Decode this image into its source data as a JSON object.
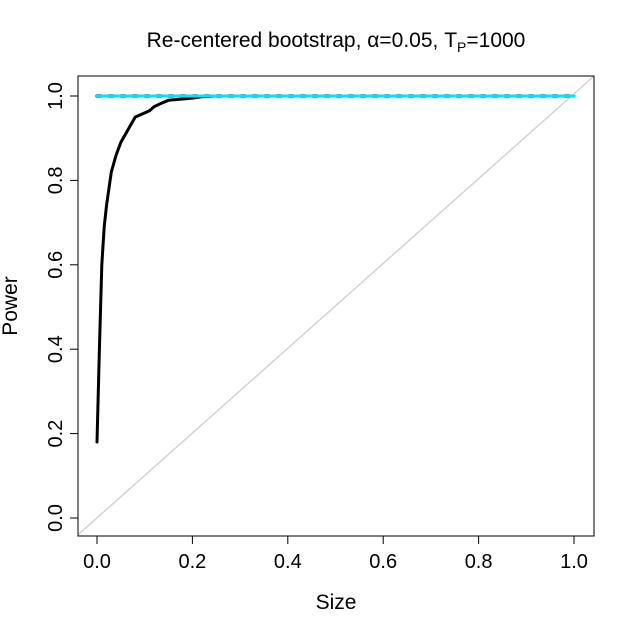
{
  "chart_data": {
    "type": "line",
    "title": {
      "main": "Re-centered bootstrap, ",
      "alpha_symbol": "α",
      "alpha_rest": "=0.05, T",
      "subscript": "P",
      "tail": "=1000"
    },
    "xlabel": "Size",
    "ylabel": "Power",
    "xlim": [
      0,
      1
    ],
    "ylim": [
      0,
      1
    ],
    "x_ticks": [
      "0.0",
      "0.2",
      "0.4",
      "0.6",
      "0.8",
      "1.0"
    ],
    "y_ticks": [
      "0.0",
      "0.2",
      "0.4",
      "0.6",
      "0.8",
      "1.0"
    ],
    "grid": false,
    "reference_line": {
      "x": [
        0,
        1
      ],
      "y": [
        0,
        1
      ],
      "color": "#d3d3d3"
    },
    "series": [
      {
        "color": "#000000",
        "style": "solid",
        "x": [
          0.0,
          0.005,
          0.01,
          0.015,
          0.02,
          0.03,
          0.04,
          0.05,
          0.06,
          0.07,
          0.08,
          0.09,
          0.1,
          0.11,
          0.12,
          0.13,
          0.14,
          0.15,
          0.17,
          0.2,
          0.22,
          0.25,
          1.0
        ],
        "y": [
          0.18,
          0.4,
          0.6,
          0.69,
          0.74,
          0.82,
          0.86,
          0.89,
          0.91,
          0.93,
          0.95,
          0.955,
          0.96,
          0.965,
          0.975,
          0.98,
          0.985,
          0.99,
          0.992,
          0.995,
          0.998,
          1.0,
          1.0
        ]
      },
      {
        "color": "#228B22",
        "style": "dashed",
        "x": [
          0.0,
          1.0
        ],
        "y": [
          1.0,
          1.0
        ]
      },
      {
        "color": "#0000CD",
        "style": "dotted",
        "x": [
          0.0,
          1.0
        ],
        "y": [
          1.0,
          1.0
        ]
      },
      {
        "color": "#00E5EE",
        "style": "solid",
        "x": [
          0.0,
          1.0
        ],
        "y": [
          1.0,
          1.0
        ]
      }
    ]
  }
}
